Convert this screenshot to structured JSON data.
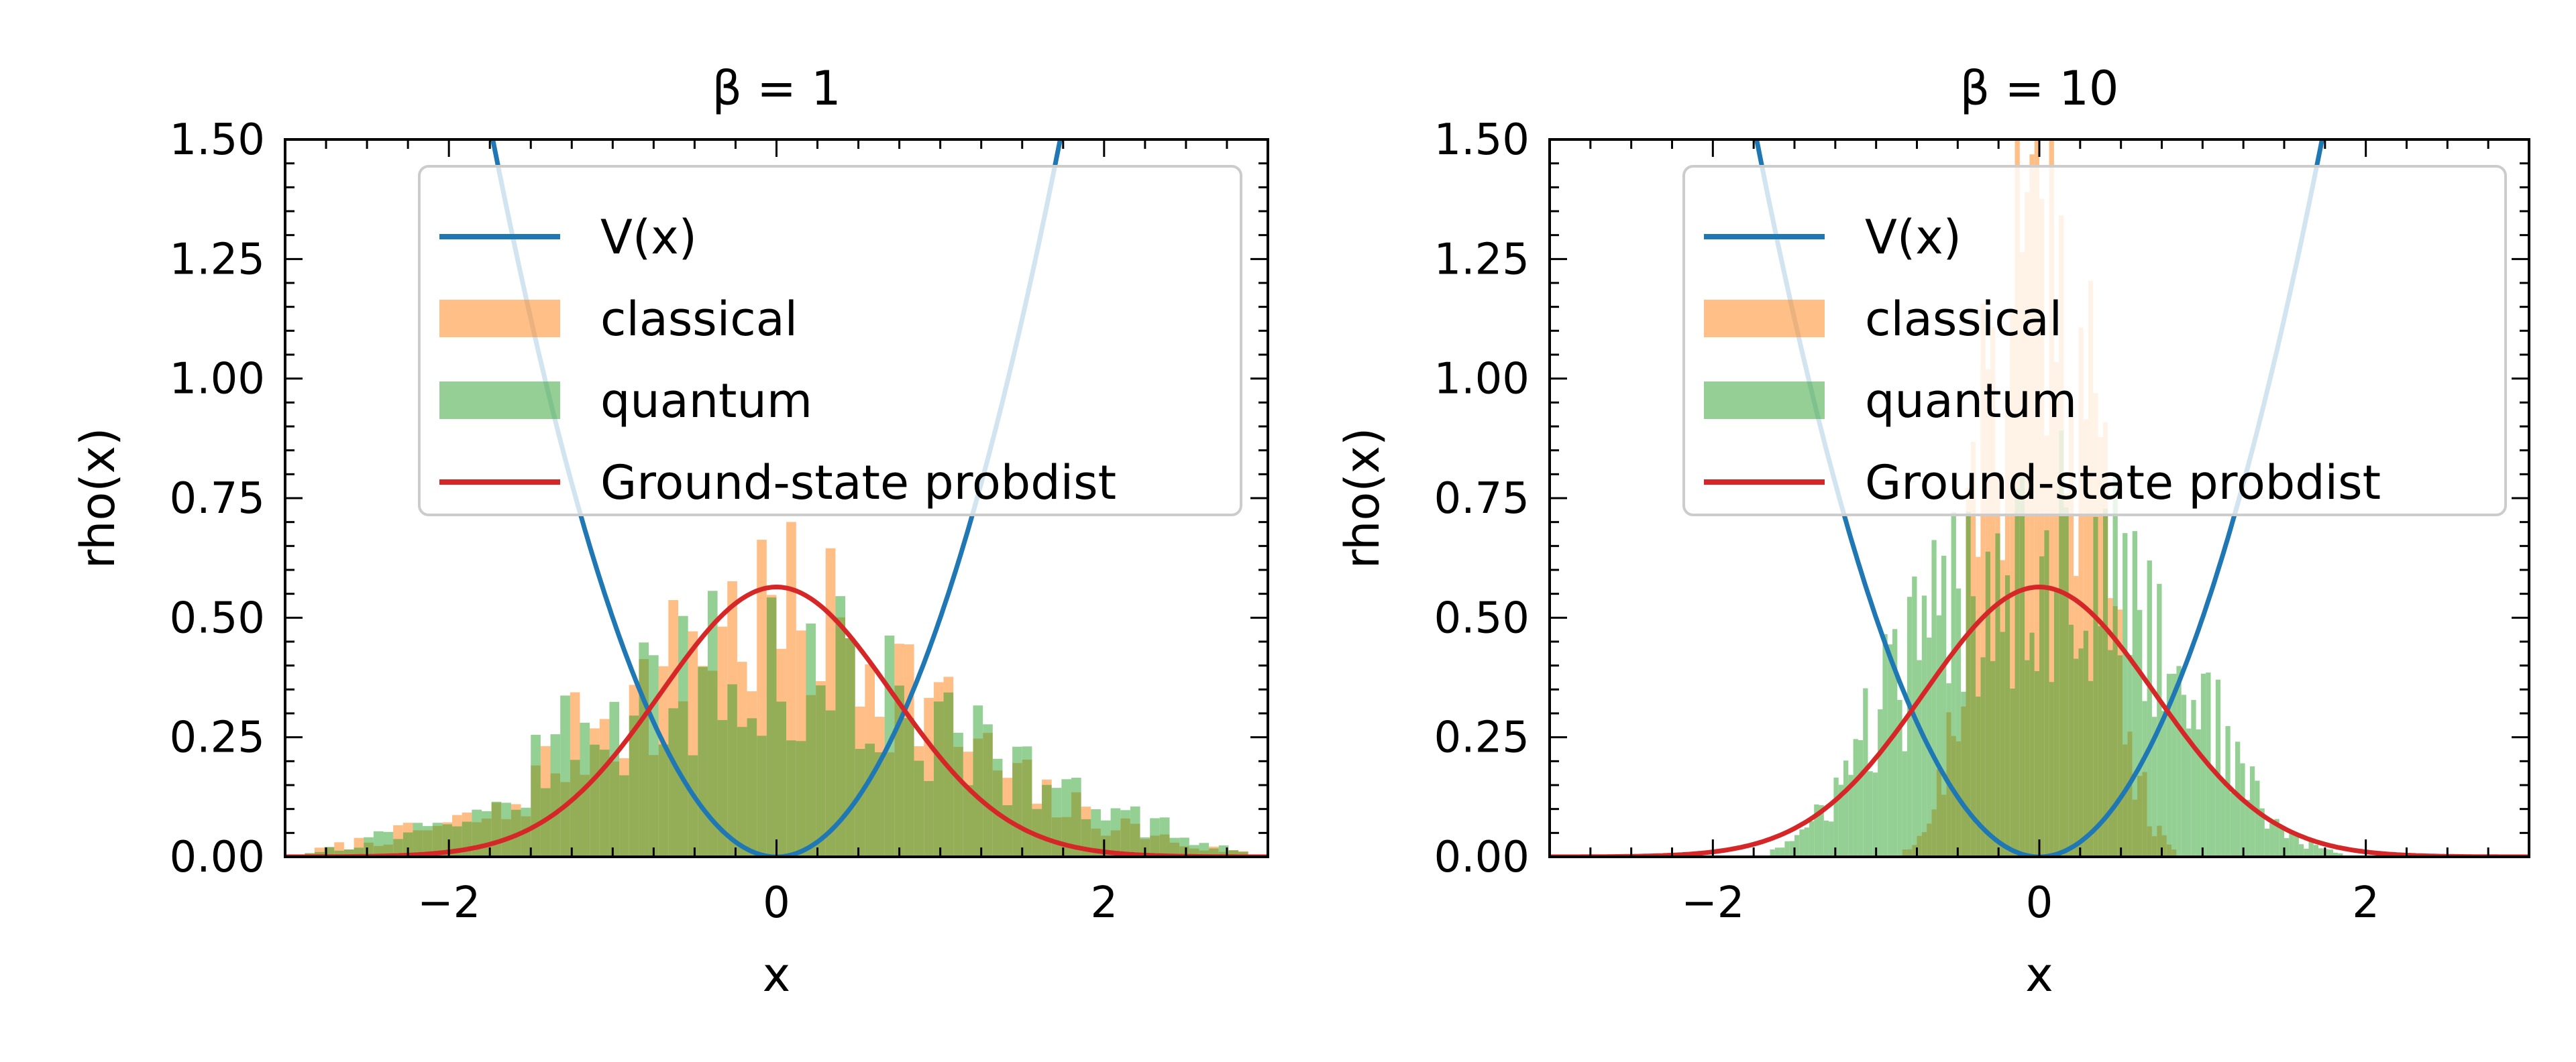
{
  "chart_data": [
    {
      "type": "line",
      "title": "β = 1",
      "xlabel": "x",
      "ylabel": "rho(x)",
      "xlim": [
        -3,
        3
      ],
      "ylim": [
        0,
        1.5
      ],
      "x_ticks": [
        "−2",
        "0",
        "2"
      ],
      "y_ticks": [
        "0.00",
        "0.25",
        "0.50",
        "0.75",
        "1.00",
        "1.25",
        "1.50"
      ],
      "grid": false,
      "legend_position": "upper-right",
      "colors": {
        "potential": "#1f77b4",
        "classical": "#ff7f0e",
        "quantum": "#2ca02c",
        "ground_state": "#d62728"
      },
      "series": [
        {
          "name": "V(x)",
          "kind": "line",
          "formula": "x^2 / 2"
        },
        {
          "name": "classical",
          "kind": "histogram",
          "bin_width": 0.06,
          "alpha": 0.5,
          "bin_centers": [
            -2.85,
            -2.55,
            -2.25,
            -1.95,
            -1.65,
            -1.35,
            -1.05,
            -0.75,
            -0.45,
            -0.15,
            0.15,
            0.45,
            0.75,
            1.05,
            1.35,
            1.65,
            1.95,
            2.25,
            2.55,
            2.85
          ],
          "values": [
            0.01,
            0.03,
            0.05,
            0.07,
            0.09,
            0.2,
            0.3,
            0.34,
            0.46,
            0.5,
            0.48,
            0.46,
            0.38,
            0.28,
            0.18,
            0.12,
            0.08,
            0.05,
            0.02,
            0.01
          ]
        },
        {
          "name": "quantum",
          "kind": "histogram",
          "bin_width": 0.06,
          "alpha": 0.5,
          "bin_centers": [
            -2.85,
            -2.55,
            -2.25,
            -1.95,
            -1.65,
            -1.35,
            -1.05,
            -0.75,
            -0.45,
            -0.15,
            0.15,
            0.45,
            0.75,
            1.05,
            1.35,
            1.65,
            1.95,
            2.25,
            2.55,
            2.85
          ],
          "values": [
            0.01,
            0.03,
            0.06,
            0.09,
            0.12,
            0.22,
            0.3,
            0.32,
            0.38,
            0.42,
            0.4,
            0.38,
            0.32,
            0.26,
            0.2,
            0.14,
            0.1,
            0.07,
            0.04,
            0.01
          ]
        },
        {
          "name": "Ground-state probdist",
          "kind": "line",
          "formula": "exp(-x^2) / sqrt(pi)"
        }
      ]
    },
    {
      "type": "line",
      "title": "β = 10",
      "xlabel": "x",
      "ylabel": "rho(x)",
      "xlim": [
        -3,
        3
      ],
      "ylim": [
        0,
        1.5
      ],
      "x_ticks": [
        "−2",
        "0",
        "2"
      ],
      "y_ticks": [
        "0.00",
        "0.25",
        "0.50",
        "0.75",
        "1.00",
        "1.25",
        "1.50"
      ],
      "grid": false,
      "legend_position": "upper-right",
      "colors": {
        "potential": "#1f77b4",
        "classical": "#ff7f0e",
        "quantum": "#2ca02c",
        "ground_state": "#d62728"
      },
      "series": [
        {
          "name": "V(x)",
          "kind": "line",
          "formula": "x^2 / 2"
        },
        {
          "name": "classical",
          "kind": "histogram",
          "bin_width": 0.03,
          "alpha": 0.5,
          "bin_centers": [
            -0.8,
            -0.7,
            -0.6,
            -0.5,
            -0.4,
            -0.3,
            -0.2,
            -0.1,
            0.0,
            0.1,
            0.2,
            0.3,
            0.4,
            0.5,
            0.6,
            0.7,
            0.8
          ],
          "values": [
            0.02,
            0.06,
            0.15,
            0.35,
            0.7,
            0.95,
            1.1,
            1.3,
            1.45,
            1.3,
            1.1,
            0.95,
            0.75,
            0.4,
            0.18,
            0.06,
            0.02
          ]
        },
        {
          "name": "quantum",
          "kind": "histogram",
          "bin_width": 0.03,
          "alpha": 0.5,
          "bin_centers": [
            -1.6,
            -1.4,
            -1.2,
            -1.0,
            -0.8,
            -0.6,
            -0.4,
            -0.2,
            0.0,
            0.2,
            0.4,
            0.6,
            0.8,
            1.0,
            1.2,
            1.4,
            1.6,
            1.8
          ],
          "values": [
            0.02,
            0.06,
            0.16,
            0.3,
            0.4,
            0.5,
            0.58,
            0.62,
            0.64,
            0.62,
            0.58,
            0.52,
            0.42,
            0.32,
            0.2,
            0.08,
            0.03,
            0.01
          ]
        },
        {
          "name": "Ground-state probdist",
          "kind": "line",
          "formula": "exp(-x^2) / sqrt(pi)"
        }
      ]
    }
  ]
}
